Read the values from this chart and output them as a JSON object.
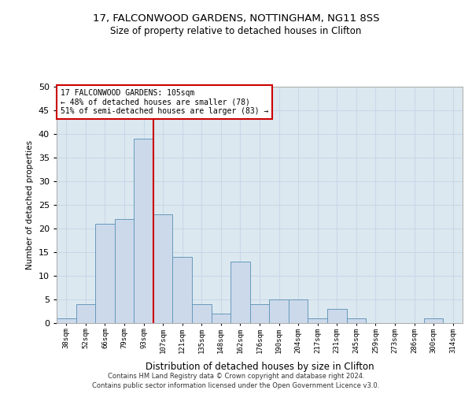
{
  "title1": "17, FALCONWOOD GARDENS, NOTTINGHAM, NG11 8SS",
  "title2": "Size of property relative to detached houses in Clifton",
  "xlabel": "Distribution of detached houses by size in Clifton",
  "ylabel": "Number of detached properties",
  "footnote1": "Contains HM Land Registry data © Crown copyright and database right 2024.",
  "footnote2": "Contains public sector information licensed under the Open Government Licence v3.0.",
  "bar_color": "#ccd9ea",
  "bar_edge_color": "#6699bb",
  "grid_color": "#c8d8e8",
  "background_color": "#dce8f0",
  "annotation_box_color": "#ffffff",
  "annotation_box_edge": "#cc0000",
  "vline_color": "#cc0000",
  "categories": [
    "38sqm",
    "52sqm",
    "66sqm",
    "79sqm",
    "93sqm",
    "107sqm",
    "121sqm",
    "135sqm",
    "148sqm",
    "162sqm",
    "176sqm",
    "190sqm",
    "204sqm",
    "217sqm",
    "231sqm",
    "245sqm",
    "259sqm",
    "273sqm",
    "286sqm",
    "300sqm",
    "314sqm"
  ],
  "values": [
    1,
    4,
    21,
    22,
    39,
    23,
    14,
    4,
    2,
    13,
    4,
    5,
    5,
    1,
    3,
    1,
    0,
    0,
    0,
    1,
    0
  ],
  "vline_x": 4.5,
  "annotation_text": "17 FALCONWOOD GARDENS: 105sqm\n← 48% of detached houses are smaller (78)\n51% of semi-detached houses are larger (83) →",
  "ylim": [
    0,
    50
  ],
  "yticks": [
    0,
    5,
    10,
    15,
    20,
    25,
    30,
    35,
    40,
    45,
    50
  ]
}
